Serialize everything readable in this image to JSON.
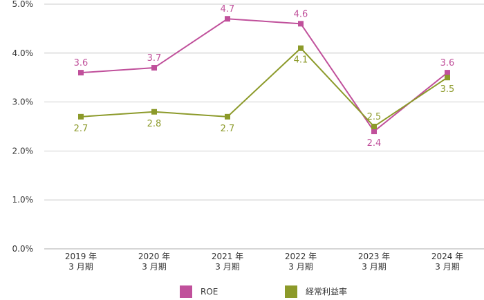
{
  "chart_data": {
    "type": "line",
    "categories": [
      [
        "2019 年",
        "3 月期"
      ],
      [
        "2020 年",
        "3 月期"
      ],
      [
        "2021 年",
        "3 月期"
      ],
      [
        "2022 年",
        "3 月期"
      ],
      [
        "2023 年",
        "3 月期"
      ],
      [
        "2024 年",
        "3 月期"
      ]
    ],
    "y_ticks": [
      "0.0%",
      "1.0%",
      "2.0%",
      "3.0%",
      "4.0%",
      "5.0%"
    ],
    "ylim": [
      0,
      5
    ],
    "grid": "horizontal",
    "legend_position": "bottom",
    "series": [
      {
        "name": "ROE",
        "color": "#c0509b",
        "values": [
          3.6,
          3.7,
          4.7,
          4.6,
          2.4,
          3.6
        ],
        "labels": [
          "3.6",
          "3.7",
          "4.7",
          "4.6",
          "2.4",
          "3.6"
        ]
      },
      {
        "name": "経常利益率",
        "color": "#8c9a2a",
        "values": [
          2.7,
          2.8,
          2.7,
          4.1,
          2.5,
          3.5
        ],
        "labels": [
          "2.7",
          "2.8",
          "2.7",
          "4.1",
          "2.5",
          "3.5"
        ]
      }
    ]
  }
}
